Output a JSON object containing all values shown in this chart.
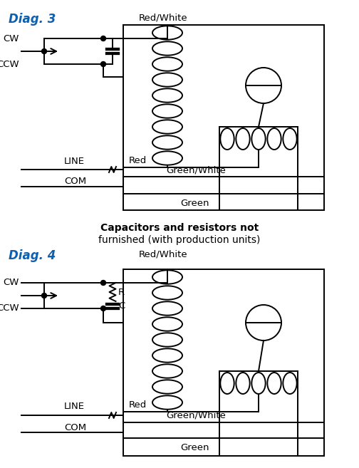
{
  "diag3_label": "Diag. 3",
  "diag4_label": "Diag. 4",
  "label_color": "#1060B0",
  "line_color": "#000000",
  "bg_color": "#ffffff",
  "caption_bold": "Capacitors and resistors not",
  "caption_normal": "furnished (with production units)",
  "cw_label": "CW",
  "ccw_label": "CCW",
  "line_label": "LINE",
  "com_label": "COM",
  "red_white_label": "Red/White",
  "red_label": "Red",
  "green_white_label": "Green/White",
  "green_label": "Green",
  "r_label": "R",
  "c_label": "C",
  "fig_w": 5.04,
  "fig_h": 6.57,
  "dpi": 100
}
